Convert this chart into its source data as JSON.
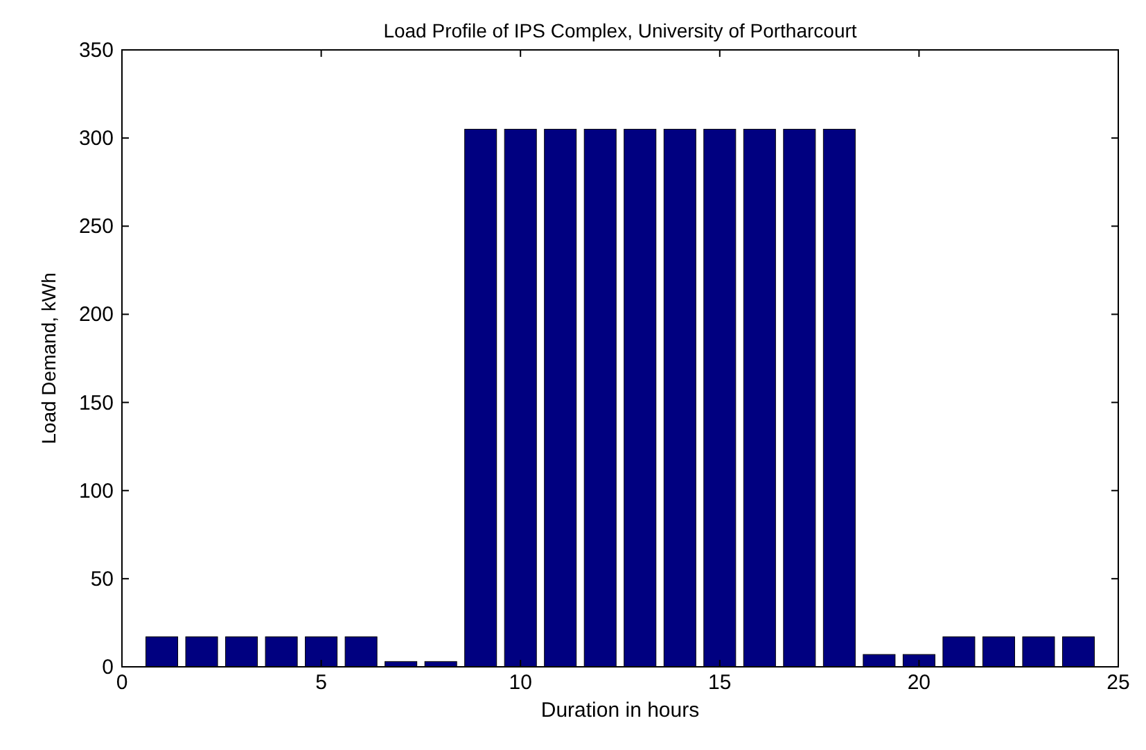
{
  "chart_data": {
    "type": "bar",
    "title": "Load Profile of IPS Complex, University of Portharcourt",
    "xlabel": "Duration in hours",
    "ylabel": "Load Demand, kWh",
    "x": [
      1,
      2,
      3,
      4,
      5,
      6,
      7,
      8,
      9,
      10,
      11,
      12,
      13,
      14,
      15,
      16,
      17,
      18,
      19,
      20,
      21,
      22,
      23,
      24
    ],
    "values": [
      17,
      17,
      17,
      17,
      17,
      17,
      3,
      3,
      305,
      305,
      305,
      305,
      305,
      305,
      305,
      305,
      305,
      305,
      7,
      7,
      17,
      17,
      17,
      17
    ],
    "color": "#000080",
    "xlim": [
      0,
      25
    ],
    "xticks": [
      0,
      5,
      10,
      15,
      20,
      25
    ],
    "ylim": [
      0,
      350
    ],
    "yticks": [
      0,
      50,
      100,
      150,
      200,
      250,
      300,
      350
    ],
    "grid": false
  }
}
